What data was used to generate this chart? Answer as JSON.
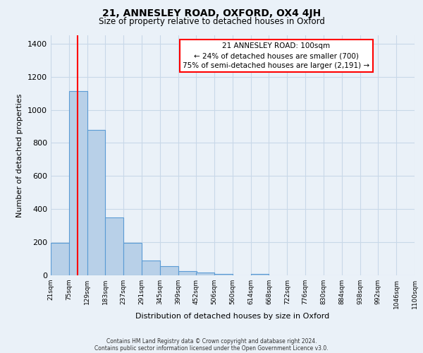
{
  "title1": "21, ANNESLEY ROAD, OXFORD, OX4 4JH",
  "title2": "Size of property relative to detached houses in Oxford",
  "xlabel": "Distribution of detached houses by size in Oxford",
  "ylabel": "Number of detached properties",
  "bar_left_edges": [
    21,
    75,
    129,
    183,
    237,
    291,
    345,
    399,
    452,
    506,
    560,
    614,
    668,
    722,
    776,
    830,
    884,
    938,
    992,
    1046
  ],
  "bar_heights": [
    195,
    1115,
    880,
    350,
    195,
    90,
    55,
    25,
    18,
    10,
    0,
    10,
    0,
    0,
    0,
    0,
    0,
    0,
    0,
    0
  ],
  "bin_width": 54,
  "tick_labels": [
    "21sqm",
    "75sqm",
    "129sqm",
    "183sqm",
    "237sqm",
    "291sqm",
    "345sqm",
    "399sqm",
    "452sqm",
    "506sqm",
    "560sqm",
    "614sqm",
    "668sqm",
    "722sqm",
    "776sqm",
    "830sqm",
    "884sqm",
    "938sqm",
    "992sqm",
    "1046sqm",
    "1100sqm"
  ],
  "bar_color": "#b8d0e8",
  "bar_edge_color": "#5b9bd5",
  "red_line_x": 100,
  "annotation_text1": "21 ANNESLEY ROAD: 100sqm",
  "annotation_text2": "← 24% of detached houses are smaller (700)",
  "annotation_text3": "75% of semi-detached houses are larger (2,191) →",
  "ylim": [
    0,
    1450
  ],
  "yticks": [
    0,
    200,
    400,
    600,
    800,
    1000,
    1200,
    1400
  ],
  "footer1": "Contains HM Land Registry data © Crown copyright and database right 2024.",
  "footer2": "Contains public sector information licensed under the Open Government Licence v3.0.",
  "bg_color": "#eaf1f8",
  "plot_bg_color": "#eaf1f8",
  "grid_color": "#c8d8e8"
}
